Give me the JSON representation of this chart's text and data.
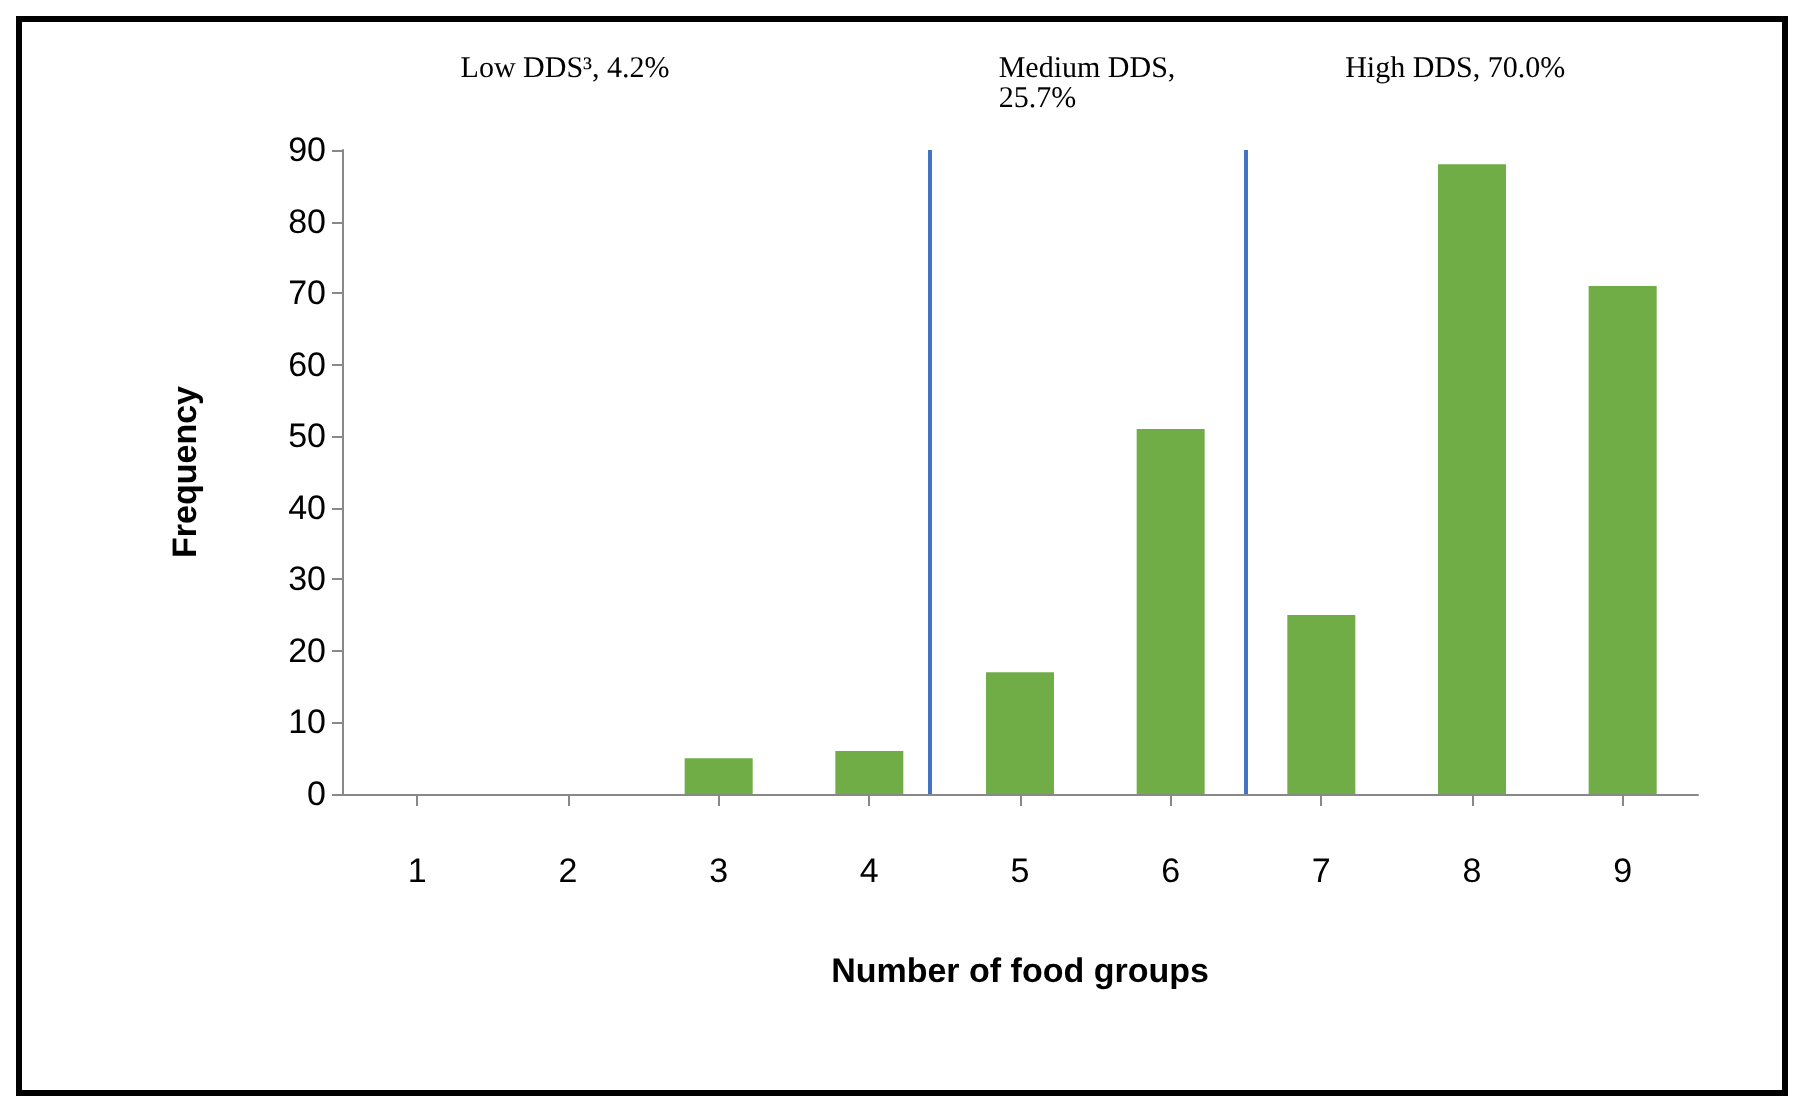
{
  "chart_data": {
    "type": "bar",
    "xlabel": "Number of food groups",
    "ylabel": "Frequency",
    "x": [
      1,
      2,
      3,
      4,
      5,
      6,
      7,
      8,
      9
    ],
    "xlim": [
      0.5,
      9.5
    ],
    "xticks": [
      1,
      2,
      3,
      4,
      5,
      6,
      7,
      8,
      9
    ],
    "values": [
      0,
      0,
      5,
      6,
      17,
      51,
      25,
      88,
      71
    ],
    "color": "#70ad47",
    "ylim": [
      0,
      90
    ],
    "yticks": [
      0,
      10,
      20,
      30,
      40,
      50,
      60,
      70,
      80,
      90
    ],
    "grid": false,
    "ref_lines": [
      {
        "axis": "x",
        "value": 4.4,
        "color": "#4472c4"
      },
      {
        "axis": "x",
        "value": 6.5,
        "color": "#4472c4"
      }
    ],
    "annotations": [
      "Low DDS³, 4.2%",
      "Medium DDS, 25.7%",
      "High DDS, 70.0%"
    ]
  }
}
